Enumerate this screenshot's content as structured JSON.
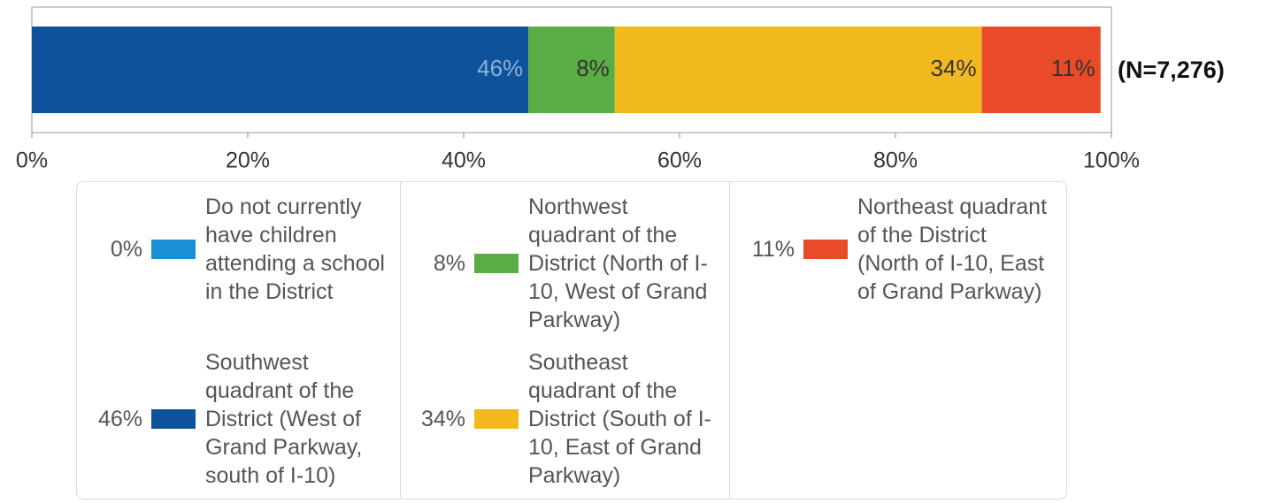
{
  "chart_data": {
    "type": "stacked_bar_horizontal",
    "categories": [
      null
    ],
    "annotation": "(N=7,276)",
    "series": [
      {
        "name": "Do not currently have children attending a school in the District",
        "color": "#1a8fd6",
        "values": [
          0
        ],
        "value_labels": [
          "0%"
        ]
      },
      {
        "name": "Southwest quadrant of the District (West of Grand Parkway, south of I-10)",
        "color": "#0d539b",
        "values": [
          46
        ],
        "value_labels": [
          "46%"
        ]
      },
      {
        "name": "Northwest quadrant of the District (North of I-10, West of Grand Parkway)",
        "color": "#5aac44",
        "values": [
          8
        ],
        "value_labels": [
          "8%"
        ]
      },
      {
        "name": "Southeast quadrant of the District (South of I-10, East of Grand Parkway)",
        "color": "#f2b91e",
        "values": [
          34
        ],
        "value_labels": [
          "34%"
        ]
      },
      {
        "name": "Northeast quadrant of the District (North of I-10, East of Grand Parkway)",
        "color": "#e84a2a",
        "values": [
          11
        ],
        "value_labels": [
          "11%"
        ]
      }
    ],
    "xlim": [
      0,
      100
    ],
    "xticks": [
      {
        "value": 0,
        "label": "0%"
      },
      {
        "value": 20,
        "label": "20%"
      },
      {
        "value": 40,
        "label": "40%"
      },
      {
        "value": 60,
        "label": "60%"
      },
      {
        "value": 80,
        "label": "80%"
      },
      {
        "value": 100,
        "label": "100%"
      }
    ]
  }
}
